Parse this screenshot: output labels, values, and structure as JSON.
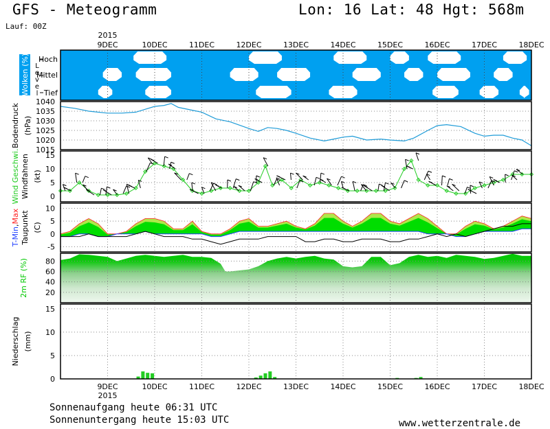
{
  "header": {
    "title": "GFS - Meteogramm",
    "location": "Lon: 16 Lat: 48 Hgt: 568m",
    "run": "Lauf: 00Z"
  },
  "footer": {
    "sunrise": "Sonnenaufgang heute 06:31 UTC",
    "sunset": "Sonnenuntergang heute 15:03 UTC",
    "website": "www.wetterzentrale.de"
  },
  "time_axis": {
    "year": "2015",
    "labels": [
      "9DEC",
      "10DEC",
      "11DEC",
      "12DEC",
      "13DEC",
      "14DEC",
      "15DEC",
      "16DEC",
      "17DEC",
      "18DEC"
    ],
    "start_day": 8.0,
    "end_day": 18.0
  },
  "colors": {
    "cloud": "#00a0f0",
    "pressure": "#1d9bd8",
    "wind": "#22cc22",
    "tmax_line": "#ff2020",
    "tmin_line": "#2040ff",
    "band_dark": "#00dd00",
    "band_light": "#aee84a",
    "rh_green": "#00c800",
    "precip": "#22cc22"
  },
  "panels": {
    "clouds": {
      "ylabel": "Wolken (%)",
      "level_label": "Level",
      "levels": [
        "Hoch",
        "Mittel",
        "Tief"
      ]
    },
    "pressure": {
      "ylabel1": "Bodendruck",
      "ylabel2": "(hPa)",
      "ticks": [
        "1040",
        "1035",
        "1030",
        "1025",
        "1020",
        "1015"
      ]
    },
    "wind": {
      "ylabel1": "Wind Geschwi.",
      "ylabel2": "Windfahnen",
      "unit": "(kt)",
      "ticks": [
        "15",
        "10",
        "5",
        "0"
      ]
    },
    "temperature": {
      "label_tmin": "T-Min",
      "label_sep": ",",
      "label_tmax": "Max",
      "label_dew": "Taupunkt",
      "unit": "(C)",
      "ticks": [
        "10",
        "5",
        "0",
        "-5"
      ]
    },
    "humidity": {
      "ylabel": "2m RF (%)",
      "ticks": [
        "80",
        "60",
        "40",
        "20"
      ]
    },
    "precip": {
      "ylabel1": "Niederschlag",
      "ylabel2": "(mm)",
      "ticks": [
        "15",
        "10",
        "5",
        "0"
      ]
    }
  },
  "chart_data": [
    {
      "type": "area",
      "name": "clouds",
      "x_unit": "day of December 2015",
      "high_clear": [
        [
          9.55,
          10.25
        ],
        [
          12.0,
          12.7
        ],
        [
          13.8,
          14.5
        ],
        [
          15.0,
          15.4
        ],
        [
          15.8,
          16.5
        ],
        [
          17.4,
          17.9
        ]
      ],
      "mid_clear": [
        [
          8.9,
          9.3
        ],
        [
          9.6,
          10.35
        ],
        [
          11.6,
          12.2
        ],
        [
          12.6,
          13.3
        ],
        [
          14.2,
          14.8
        ],
        [
          15.3,
          15.7
        ],
        [
          16.0,
          16.7
        ],
        [
          17.2,
          17.6
        ]
      ],
      "low_clear": [
        [
          8.8,
          9.1
        ],
        [
          9.8,
          10.35
        ],
        [
          12.15,
          12.9
        ],
        [
          13.7,
          14.3
        ],
        [
          15.9,
          16.45
        ],
        [
          16.9,
          17.3
        ],
        [
          17.75,
          17.95
        ]
      ]
    },
    {
      "type": "line",
      "name": "pressure",
      "x": [
        8.0,
        8.3,
        8.6,
        9.0,
        9.3,
        9.6,
        9.8,
        10.0,
        10.2,
        10.35,
        10.5,
        10.8,
        11.0,
        11.3,
        11.6,
        12.0,
        12.2,
        12.4,
        12.6,
        12.8,
        13.0,
        13.3,
        13.6,
        13.8,
        14.0,
        14.2,
        14.5,
        14.8,
        15.0,
        15.3,
        15.5,
        15.8,
        16.0,
        16.2,
        16.5,
        16.8,
        17.0,
        17.2,
        17.4,
        17.6,
        17.8,
        18.0
      ],
      "y": [
        1037.5,
        1036.5,
        1035,
        1034,
        1034,
        1034.5,
        1036,
        1037.5,
        1038,
        1039,
        1037,
        1035.5,
        1034.5,
        1031,
        1029.5,
        1026,
        1024.5,
        1026.5,
        1026,
        1025,
        1023.5,
        1021,
        1019.5,
        1020.5,
        1021.5,
        1022,
        1020,
        1020.5,
        1020,
        1019.5,
        1021,
        1025,
        1027.5,
        1028,
        1027,
        1023.5,
        1022,
        1022.5,
        1022.5,
        1021,
        1020,
        1017
      ],
      "ylim": [
        1015,
        1040
      ]
    },
    {
      "type": "line",
      "name": "wind speed",
      "x": [
        8.0,
        8.2,
        8.4,
        8.6,
        8.8,
        9.0,
        9.2,
        9.4,
        9.6,
        9.8,
        10.0,
        10.2,
        10.4,
        10.6,
        10.8,
        11.0,
        11.2,
        11.4,
        11.6,
        11.8,
        12.0,
        12.2,
        12.35,
        12.5,
        12.7,
        12.9,
        13.1,
        13.3,
        13.5,
        13.7,
        13.9,
        14.1,
        14.3,
        14.5,
        14.7,
        14.9,
        15.1,
        15.3,
        15.45,
        15.6,
        15.8,
        16.0,
        16.2,
        16.4,
        16.6,
        16.8,
        17.0,
        17.2,
        17.4,
        17.6,
        17.8,
        18.0
      ],
      "y": [
        2,
        2,
        5,
        2,
        0.5,
        0.5,
        0.5,
        1,
        3,
        9,
        12,
        11,
        10,
        6,
        2,
        1,
        2,
        3,
        3,
        2,
        2,
        5,
        11,
        4,
        6,
        3,
        6,
        4,
        5,
        4,
        3,
        2,
        2,
        2,
        2,
        2,
        3,
        10,
        13,
        6,
        4,
        4,
        2,
        1,
        1,
        3,
        4,
        5,
        6,
        8,
        8,
        8
      ],
      "ylim": [
        0,
        15
      ]
    },
    {
      "type": "area",
      "name": "temperature",
      "x": [
        8.0,
        8.2,
        8.4,
        8.6,
        8.8,
        9.0,
        9.2,
        9.4,
        9.6,
        9.8,
        10.0,
        10.2,
        10.4,
        10.6,
        10.8,
        11.0,
        11.2,
        11.4,
        11.6,
        11.8,
        12.0,
        12.2,
        12.4,
        12.6,
        12.8,
        13.0,
        13.2,
        13.4,
        13.6,
        13.8,
        14.0,
        14.2,
        14.4,
        14.6,
        14.8,
        15.0,
        15.2,
        15.4,
        15.6,
        15.8,
        16.0,
        16.2,
        16.4,
        16.6,
        16.8,
        17.0,
        17.2,
        17.4,
        17.6,
        17.8,
        18.0
      ],
      "series": [
        {
          "name": "Max",
          "values": [
            0,
            1,
            4,
            6,
            4,
            0,
            0,
            1,
            4,
            6,
            6,
            5,
            2,
            2,
            5,
            1,
            0,
            0,
            2,
            5,
            6,
            3,
            3,
            4,
            5,
            3,
            2,
            4,
            8,
            8,
            5,
            3,
            5,
            8,
            8,
            5,
            4,
            6,
            8,
            6,
            3,
            0,
            0,
            3,
            5,
            4,
            2,
            3,
            5,
            7,
            6
          ]
        },
        {
          "name": "Min",
          "values": [
            -1,
            -1,
            0,
            0,
            -1,
            -1,
            0,
            0,
            0,
            1,
            0,
            0,
            0,
            0,
            0,
            0,
            -1,
            -1,
            0,
            1,
            1,
            1,
            1,
            1,
            1,
            1,
            1,
            1,
            1,
            1,
            1,
            1,
            1,
            1,
            1,
            1,
            1,
            1,
            1,
            0,
            0,
            0,
            -1,
            -1,
            0,
            1,
            1,
            1,
            1,
            2,
            2
          ]
        },
        {
          "name": "Taupunkt",
          "values": [
            -1,
            -1,
            -1,
            0,
            -1,
            -1,
            -1,
            -1,
            0,
            1,
            0,
            -1,
            -1,
            -1,
            -2,
            -2,
            -3,
            -4,
            -3,
            -2,
            -2,
            -2,
            -1,
            -1,
            -1,
            -1,
            -3,
            -3,
            -2,
            -2,
            -3,
            -3,
            -2,
            -2,
            -2,
            -3,
            -3,
            -2,
            -2,
            -1,
            0,
            -1,
            0,
            -1,
            0,
            1,
            2,
            3,
            3,
            4,
            4
          ]
        }
      ],
      "ylim": [
        -7,
        12
      ]
    },
    {
      "type": "area",
      "name": "humidity",
      "x": [
        8.0,
        8.2,
        8.4,
        8.6,
        8.8,
        9.0,
        9.2,
        9.4,
        9.6,
        9.8,
        10.0,
        10.2,
        10.4,
        10.6,
        10.8,
        11.0,
        11.2,
        11.4,
        11.5,
        11.6,
        11.8,
        12.0,
        12.2,
        12.4,
        12.6,
        12.8,
        13.0,
        13.2,
        13.4,
        13.6,
        13.8,
        14.0,
        14.2,
        14.4,
        14.6,
        14.8,
        15.0,
        15.2,
        15.4,
        15.6,
        15.8,
        16.0,
        16.2,
        16.4,
        16.6,
        16.8,
        17.0,
        17.2,
        17.4,
        17.6,
        17.8,
        18.0
      ],
      "y": [
        82,
        85,
        93,
        92,
        90,
        88,
        80,
        85,
        90,
        92,
        90,
        88,
        90,
        92,
        88,
        88,
        86,
        75,
        60,
        60,
        62,
        64,
        70,
        80,
        85,
        88,
        85,
        88,
        90,
        85,
        83,
        70,
        68,
        70,
        88,
        88,
        72,
        76,
        88,
        92,
        88,
        90,
        86,
        92,
        90,
        88,
        84,
        86,
        90,
        94,
        90,
        90
      ],
      "ylim": [
        0,
        95
      ]
    },
    {
      "type": "bar",
      "name": "precipitation",
      "x": [
        9.65,
        9.75,
        9.85,
        9.95,
        12.15,
        12.25,
        12.35,
        12.45,
        12.55,
        15.15,
        15.55,
        15.65
      ],
      "values": [
        0.5,
        1.6,
        1.3,
        1.2,
        0.3,
        0.7,
        1.2,
        1.6,
        0.4,
        0.2,
        0.2,
        0.4
      ],
      "ylim": [
        0,
        16
      ]
    }
  ]
}
